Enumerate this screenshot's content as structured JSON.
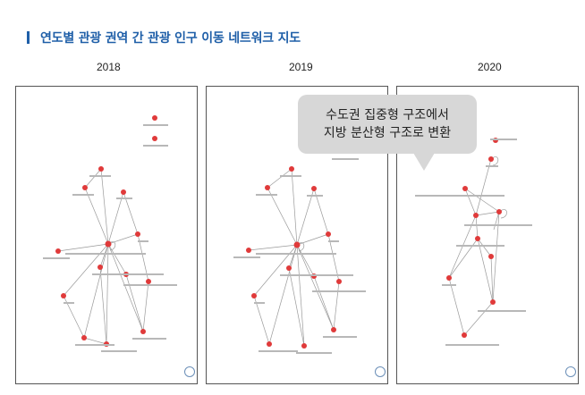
{
  "heading": {
    "title": "연도별 관광 권역 간 관광 인구 이동 네트워크 지도"
  },
  "years": [
    "2018",
    "2019",
    "2020"
  ],
  "callout": {
    "line1": "수도권 집중형 구조에서",
    "line2": "지방 분산형 구조로 변환"
  },
  "colors": {
    "accent": "#1f5fa8",
    "node": "#e03a3a",
    "edge": "#9a9a9a",
    "callout": "#d7d7d7"
  },
  "icons": [
    "compass-icon"
  ]
}
